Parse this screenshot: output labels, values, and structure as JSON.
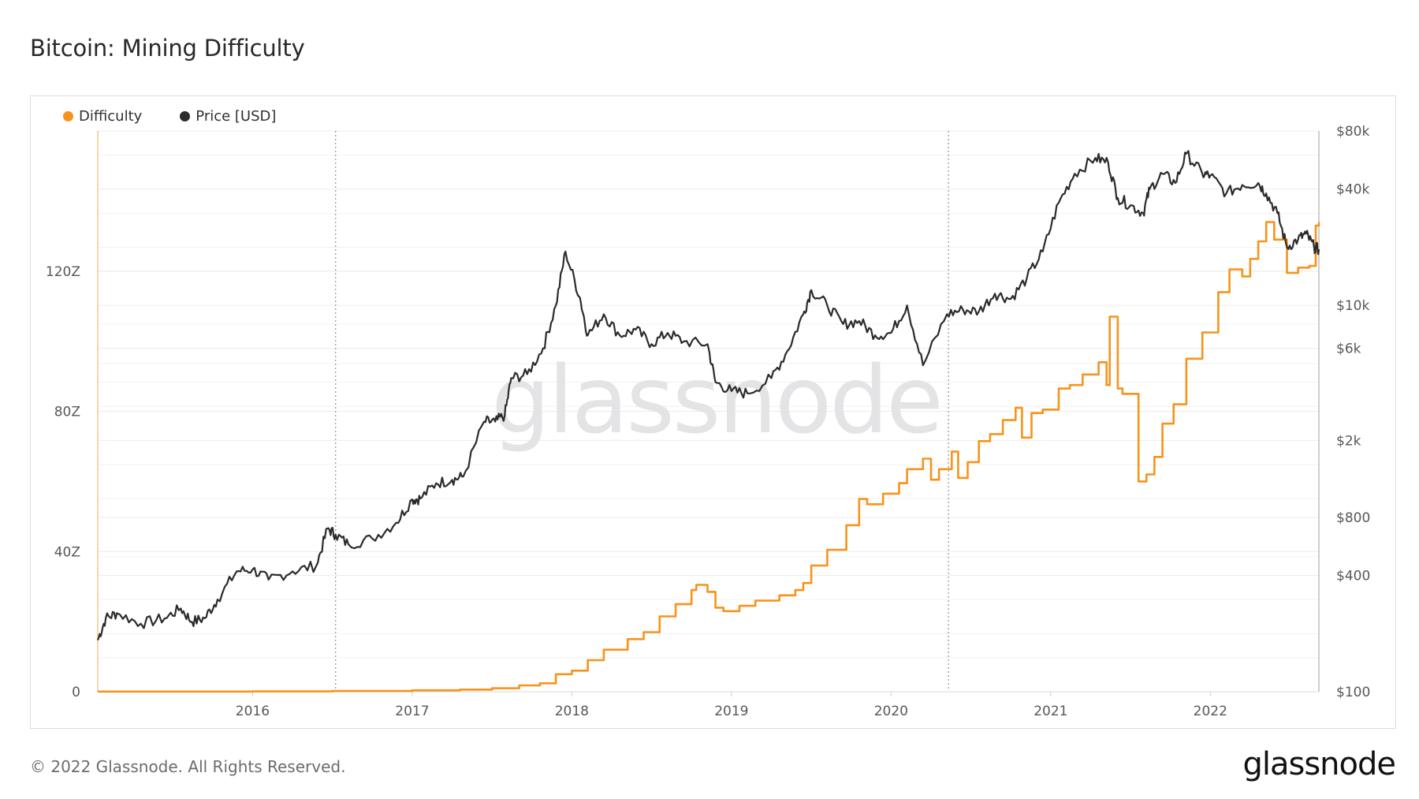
{
  "header": {
    "title": "Bitcoin: Mining Difficulty"
  },
  "footer": {
    "copyright": "© 2022 Glassnode. All Rights Reserved.",
    "logo": "glassnode"
  },
  "watermark": "glassnode",
  "colors": {
    "difficulty": "#f7931a",
    "price": "#2b2b2b",
    "grid": "#ececec",
    "axis": "#bdbdbd"
  },
  "chart_data": {
    "type": "line",
    "title": "Bitcoin: Mining Difficulty",
    "legend_position": "top-left",
    "grid": true,
    "x_ticks": [
      "2016",
      "2017",
      "2018",
      "2019",
      "2020",
      "2021",
      "2022"
    ],
    "x_tick_values": [
      2016.0,
      2017.0,
      2018.0,
      2019.0,
      2020.0,
      2021.0,
      2022.0
    ],
    "x_range": [
      2015.03,
      2022.68
    ],
    "halving_markers": [
      2016.52,
      2020.36
    ],
    "y_left": {
      "label": "Difficulty",
      "ticks": [
        "0",
        "40Z",
        "80Z",
        "120Z"
      ],
      "tick_values": [
        0,
        40,
        80,
        120
      ],
      "range": [
        0,
        160
      ],
      "unit": "Z"
    },
    "y_right": {
      "label": "Price [USD]",
      "scale": "log",
      "ticks": [
        "$100",
        "$400",
        "$800",
        "$2k",
        "$6k",
        "$10k",
        "$40k",
        "$80k"
      ],
      "tick_values": [
        100,
        400,
        800,
        2000,
        6000,
        10000,
        40000,
        80000
      ],
      "range": [
        100,
        80000
      ]
    },
    "series": [
      {
        "name": "Difficulty",
        "axis": "left",
        "step": true,
        "points": [
          [
            2015.03,
            0.04
          ],
          [
            2015.5,
            0.05
          ],
          [
            2016.0,
            0.1
          ],
          [
            2016.5,
            0.2
          ],
          [
            2017.0,
            0.4
          ],
          [
            2017.3,
            0.6
          ],
          [
            2017.5,
            1.0
          ],
          [
            2017.67,
            1.8
          ],
          [
            2017.8,
            2.4
          ],
          [
            2017.9,
            5.0
          ],
          [
            2018.0,
            6.0
          ],
          [
            2018.1,
            9.0
          ],
          [
            2018.2,
            12.0
          ],
          [
            2018.35,
            15.0
          ],
          [
            2018.45,
            17.0
          ],
          [
            2018.55,
            21.5
          ],
          [
            2018.65,
            25.0
          ],
          [
            2018.75,
            29.0
          ],
          [
            2018.78,
            30.5
          ],
          [
            2018.85,
            28.5
          ],
          [
            2018.9,
            24.0
          ],
          [
            2018.95,
            23.0
          ],
          [
            2019.05,
            24.5
          ],
          [
            2019.15,
            26.0
          ],
          [
            2019.3,
            27.5
          ],
          [
            2019.4,
            29.0
          ],
          [
            2019.45,
            31.0
          ],
          [
            2019.5,
            36.0
          ],
          [
            2019.6,
            40.5
          ],
          [
            2019.72,
            47.5
          ],
          [
            2019.8,
            55.0
          ],
          [
            2019.85,
            53.5
          ],
          [
            2019.95,
            56.5
          ],
          [
            2020.05,
            59.5
          ],
          [
            2020.1,
            63.5
          ],
          [
            2020.2,
            66.5
          ],
          [
            2020.25,
            60.5
          ],
          [
            2020.3,
            63.5
          ],
          [
            2020.38,
            68.5
          ],
          [
            2020.42,
            61.0
          ],
          [
            2020.48,
            65.5
          ],
          [
            2020.55,
            71.5
          ],
          [
            2020.62,
            73.5
          ],
          [
            2020.7,
            77.5
          ],
          [
            2020.78,
            81.0
          ],
          [
            2020.82,
            72.5
          ],
          [
            2020.88,
            79.5
          ],
          [
            2020.95,
            80.5
          ],
          [
            2021.05,
            86.5
          ],
          [
            2021.12,
            87.5
          ],
          [
            2021.2,
            90.5
          ],
          [
            2021.3,
            94.0
          ],
          [
            2021.35,
            87.5
          ],
          [
            2021.37,
            107.0
          ],
          [
            2021.42,
            86.5
          ],
          [
            2021.45,
            85.0
          ],
          [
            2021.55,
            60.0
          ],
          [
            2021.6,
            62.0
          ],
          [
            2021.65,
            67.0
          ],
          [
            2021.7,
            76.5
          ],
          [
            2021.77,
            82.0
          ],
          [
            2021.85,
            95.0
          ],
          [
            2021.95,
            102.5
          ],
          [
            2022.05,
            114.0
          ],
          [
            2022.12,
            120.5
          ],
          [
            2022.2,
            118.5
          ],
          [
            2022.25,
            123.5
          ],
          [
            2022.3,
            128.5
          ],
          [
            2022.35,
            134.0
          ],
          [
            2022.4,
            129.0
          ],
          [
            2022.48,
            119.5
          ],
          [
            2022.55,
            121.0
          ],
          [
            2022.62,
            121.5
          ],
          [
            2022.66,
            133.0
          ],
          [
            2022.68,
            134.0
          ]
        ]
      },
      {
        "name": "Price [USD]",
        "axis": "right",
        "step": false,
        "points": [
          [
            2015.03,
            185
          ],
          [
            2015.08,
            240
          ],
          [
            2015.15,
            255
          ],
          [
            2015.3,
            225
          ],
          [
            2015.45,
            240
          ],
          [
            2015.55,
            270
          ],
          [
            2015.62,
            230
          ],
          [
            2015.7,
            240
          ],
          [
            2015.78,
            300
          ],
          [
            2015.9,
            420
          ],
          [
            2016.0,
            430
          ],
          [
            2016.1,
            380
          ],
          [
            2016.25,
            420
          ],
          [
            2016.4,
            450
          ],
          [
            2016.47,
            700
          ],
          [
            2016.52,
            650
          ],
          [
            2016.6,
            580
          ],
          [
            2016.75,
            620
          ],
          [
            2016.9,
            750
          ],
          [
            2017.0,
            990
          ],
          [
            2017.05,
            1000
          ],
          [
            2017.15,
            1200
          ],
          [
            2017.25,
            1250
          ],
          [
            2017.32,
            1300
          ],
          [
            2017.45,
            2500
          ],
          [
            2017.52,
            2500
          ],
          [
            2017.58,
            2700
          ],
          [
            2017.62,
            4200
          ],
          [
            2017.72,
            4400
          ],
          [
            2017.82,
            6000
          ],
          [
            2017.9,
            10000
          ],
          [
            2017.96,
            19000
          ],
          [
            2018.05,
            11000
          ],
          [
            2018.1,
            7000
          ],
          [
            2018.2,
            9000
          ],
          [
            2018.3,
            7000
          ],
          [
            2018.4,
            7500
          ],
          [
            2018.5,
            6300
          ],
          [
            2018.6,
            7200
          ],
          [
            2018.7,
            6500
          ],
          [
            2018.85,
            6300
          ],
          [
            2018.9,
            4000
          ],
          [
            2019.0,
            3600
          ],
          [
            2019.1,
            3500
          ],
          [
            2019.25,
            4200
          ],
          [
            2019.35,
            5800
          ],
          [
            2019.45,
            9000
          ],
          [
            2019.5,
            12000
          ],
          [
            2019.6,
            10000
          ],
          [
            2019.7,
            8000
          ],
          [
            2019.8,
            8300
          ],
          [
            2019.9,
            7000
          ],
          [
            2020.0,
            7200
          ],
          [
            2020.1,
            10000
          ],
          [
            2020.2,
            4900
          ],
          [
            2020.35,
            9000
          ],
          [
            2020.45,
            9500
          ],
          [
            2020.55,
            9300
          ],
          [
            2020.65,
            11500
          ],
          [
            2020.75,
            10800
          ],
          [
            2020.85,
            13800
          ],
          [
            2020.95,
            19000
          ],
          [
            2021.05,
            34000
          ],
          [
            2021.15,
            48000
          ],
          [
            2021.28,
            58000
          ],
          [
            2021.36,
            55000
          ],
          [
            2021.42,
            36000
          ],
          [
            2021.5,
            33000
          ],
          [
            2021.58,
            30000
          ],
          [
            2021.62,
            40000
          ],
          [
            2021.7,
            48000
          ],
          [
            2021.78,
            43000
          ],
          [
            2021.85,
            61000
          ],
          [
            2021.95,
            48000
          ],
          [
            2022.0,
            47000
          ],
          [
            2022.1,
            38000
          ],
          [
            2022.2,
            42000
          ],
          [
            2022.3,
            43000
          ],
          [
            2022.35,
            38000
          ],
          [
            2022.42,
            30000
          ],
          [
            2022.48,
            20000
          ],
          [
            2022.55,
            22000
          ],
          [
            2022.6,
            23500
          ],
          [
            2022.65,
            20000
          ],
          [
            2022.68,
            19500
          ]
        ]
      }
    ]
  }
}
